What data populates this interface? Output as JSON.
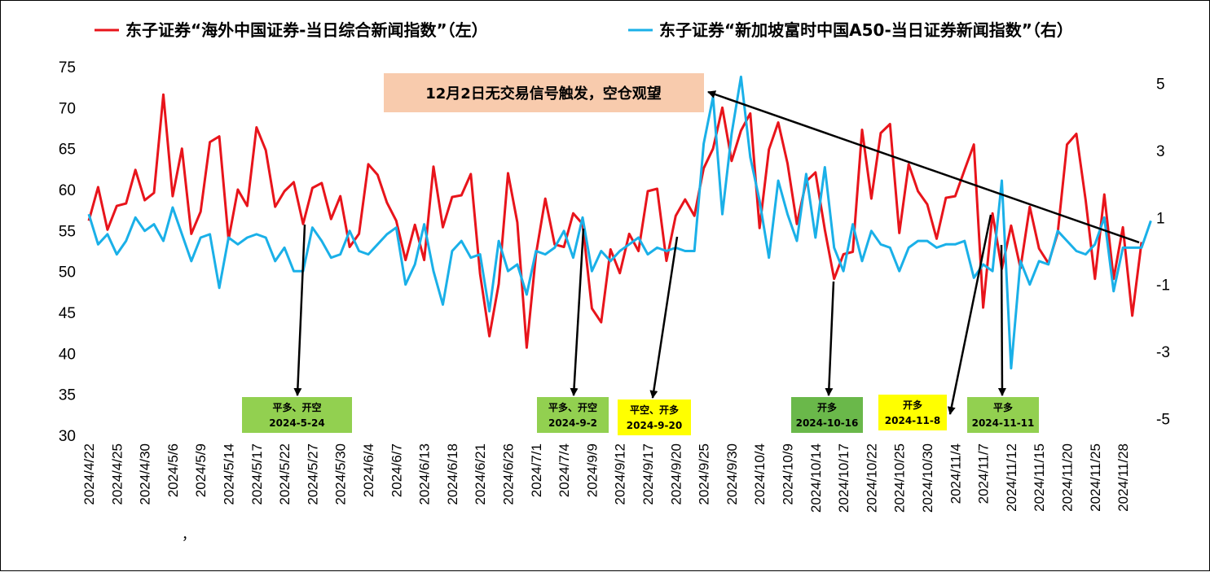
{
  "chart_data": {
    "type": "line",
    "legend": [
      {
        "label": "东子证券“海外中国证券-当日综合新闻指数”（左）",
        "color": "#e8141b"
      },
      {
        "label": "东子证券“新加坡富时中国A50-当日证券新闻指数”（右）",
        "color": "#1ab0e8"
      }
    ],
    "y_left": {
      "ticks": [
        "75",
        "70",
        "65",
        "60",
        "55",
        "50",
        "45",
        "40",
        "35",
        "30"
      ],
      "range": [
        30,
        75
      ]
    },
    "y_right": {
      "ticks": [
        "5",
        "3",
        "1",
        "-1",
        "-3",
        "-5"
      ],
      "range": [
        -5.5,
        5.5
      ]
    },
    "x_ticks": [
      "2024/4/22",
      "2024/4/25",
      "2024/4/30",
      "2024/5/6",
      "2024/5/9",
      "2024/5/14",
      "2024/5/17",
      "2024/5/22",
      "2024/5/27",
      "2024/5/30",
      "2024/6/4",
      "2024/6/7",
      "2024/6/13",
      "2024/6/18",
      "2024/6/21",
      "2024/6/26",
      "2024/7/1",
      "2024/7/4",
      "2024/9/9",
      "2024/9/12",
      "2024/9/17",
      "2024/9/20",
      "2024/9/25",
      "2024/9/30",
      "2024/10/4",
      "2024/10/9",
      "2024/10/14",
      "2024/10/17",
      "2024/10/22",
      "2024/10/25",
      "2024/10/30",
      "2024/11/4",
      "2024/11/7",
      "2024/11/12",
      "2024/11/15",
      "2024/11/20",
      "2024/11/25",
      "2024/11/28"
    ],
    "x_stray_mark": "，",
    "series": [
      {
        "name": "东子证券“海外中国证券-当日综合新闻指数”（左）",
        "axis": "left",
        "color": "#e8141b",
        "values": [
          56.2,
          60.3,
          55.1,
          58,
          58.3,
          62.4,
          58.7,
          59.6,
          71.6,
          59.2,
          65,
          54.6,
          57.3,
          65.8,
          66.5,
          53.9,
          60,
          58,
          67.6,
          64.8,
          57.9,
          59.8,
          60.9,
          55.8,
          60.2,
          60.8,
          56.4,
          59.2,
          53,
          54.6,
          63.1,
          61.8,
          58.4,
          56.2,
          51.4,
          55.7,
          51.4,
          62.8,
          55.4,
          59.1,
          59.3,
          61.9,
          49.7,
          42.1,
          48.5,
          62,
          56,
          40.7,
          52.1,
          58.9,
          53.3,
          53,
          57.1,
          55.8,
          45.5,
          43.8,
          52.7,
          49.8,
          54.6,
          52.5,
          59.8,
          60.1,
          51.3,
          56.8,
          58.8,
          56.8,
          62.6,
          65,
          70,
          63.5,
          67.2,
          69.3,
          55.3,
          64.9,
          68.2,
          63.2,
          55.8,
          61,
          62.1,
          55.1,
          49.1,
          52.1,
          52.4,
          67.3,
          58.9,
          66.9,
          68,
          54.7,
          63.1,
          59.8,
          58.2,
          54,
          59,
          59.2,
          62.4,
          65.5,
          45.6,
          57.1,
          50.3,
          55.6,
          50.4,
          57.9,
          52.8,
          51,
          54.7,
          65.5,
          66.8,
          58.7,
          49.1,
          59.4,
          49.1,
          55.4,
          44.6,
          53.6
        ]
      },
      {
        "name": "东子证券“新加坡富时中国A50-当日证券新闻指数”（右）",
        "axis": "right",
        "color": "#1ab0e8",
        "values": [
          1.1,
          0.2,
          0.5,
          -0.1,
          0.3,
          1,
          0.6,
          0.8,
          0.3,
          1.3,
          0.5,
          -0.3,
          0.4,
          0.5,
          -1.1,
          0.4,
          0.2,
          0.4,
          0.5,
          0.4,
          -0.3,
          0.1,
          -0.6,
          -0.6,
          0.7,
          0.3,
          -0.2,
          -0.1,
          0.6,
          0,
          -0.1,
          0.2,
          0.5,
          0.7,
          -1,
          -0.4,
          0.8,
          -0.6,
          -1.6,
          0,
          0.3,
          -0.2,
          -0.1,
          -1.8,
          0.3,
          -0.6,
          -0.4,
          -1.3,
          0,
          -0.1,
          0.1,
          0.6,
          -0.2,
          1,
          -0.6,
          0,
          -0.3,
          0,
          0.2,
          0.4,
          -0.1,
          0.1,
          0,
          0.1,
          0,
          0,
          3.2,
          4.6,
          1.1,
          3.5,
          5.2,
          2.8,
          1.5,
          -0.2,
          2.1,
          1.1,
          0.3,
          2.3,
          0.4,
          2.5,
          0.1,
          -0.6,
          0.8,
          -0.3,
          0.6,
          0.2,
          0.1,
          -0.6,
          0.1,
          0.3,
          0.3,
          0.1,
          0.2,
          0.2,
          0.3,
          -0.8,
          -0.4,
          -0.6,
          2.1,
          -3.5,
          -0.3,
          -1,
          -0.3,
          -0.4,
          0.6,
          0.3,
          0,
          -0.1,
          0.2,
          1,
          -1.2,
          0.1,
          0.1,
          0.1,
          0.9
        ]
      }
    ],
    "annotations": [
      {
        "line1": "平多、开空",
        "line2": "2024-5-24",
        "bg": "#92d050"
      },
      {
        "line1": "平多、开空",
        "line2": "2024-9-2",
        "bg": "#92d050"
      },
      {
        "line1": "平空、开多",
        "line2": "2024-9-20",
        "bg": "#ffff00"
      },
      {
        "line1": "开多",
        "line2": "2024-10-16",
        "bg": "#6ab84a"
      },
      {
        "line1": "开多",
        "line2": "2024-11-8",
        "bg": "#ffff00"
      },
      {
        "line1": "平多",
        "line2": "2024-11-11",
        "bg": "#92d050"
      }
    ],
    "callout": {
      "text": "12月2日无交易信号触发，空仓观望",
      "bg": "#f8cbad"
    }
  }
}
